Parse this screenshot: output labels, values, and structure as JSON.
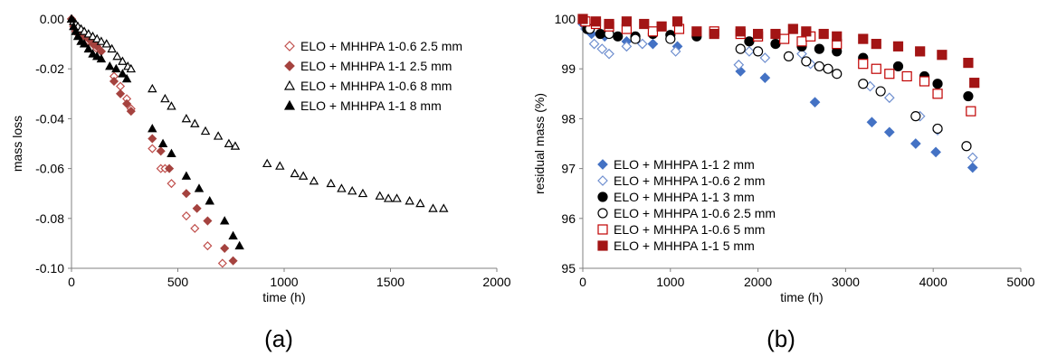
{
  "chart_data": [
    {
      "type": "scatter",
      "panel_label": "(a)",
      "xlabel": "time (h)",
      "ylabel": "mass loss",
      "xlim": [
        0,
        2000
      ],
      "ylim": [
        -0.1,
        0.0
      ],
      "xticks": [
        "0",
        "500",
        "1000",
        "1500",
        "2000"
      ],
      "yticks": [
        "0.00",
        "-0.02",
        "-0.04",
        "-0.06",
        "-0.08",
        "-0.10"
      ],
      "xtick_values": [
        0,
        500,
        1000,
        1500,
        2000
      ],
      "ytick_values": [
        0,
        -0.02,
        -0.04,
        -0.06,
        -0.08,
        -0.1
      ],
      "legend_position": "top-right",
      "series": [
        {
          "name": "ELO + MHHPA 1-0.6 2.5 mm",
          "marker": "diamond-open",
          "color": "#c0504d",
          "x": [
            0,
            10,
            20,
            30,
            45,
            60,
            80,
            100,
            120,
            140,
            200,
            230,
            260,
            280,
            380,
            420,
            440,
            470,
            540,
            580,
            640,
            710
          ],
          "y": [
            0.0,
            -0.003,
            -0.005,
            -0.006,
            -0.007,
            -0.008,
            -0.009,
            -0.01,
            -0.012,
            -0.013,
            -0.023,
            -0.027,
            -0.032,
            -0.036,
            -0.052,
            -0.06,
            -0.06,
            -0.066,
            -0.079,
            -0.084,
            -0.091,
            -0.098
          ]
        },
        {
          "name": "ELO + MHHPA 1-1 2.5 mm",
          "marker": "diamond-filled",
          "color": "#a5433f",
          "x": [
            0,
            10,
            20,
            30,
            45,
            60,
            80,
            100,
            120,
            140,
            200,
            230,
            260,
            280,
            380,
            420,
            460,
            540,
            590,
            640,
            720,
            760
          ],
          "y": [
            0.0,
            -0.002,
            -0.004,
            -0.005,
            -0.006,
            -0.007,
            -0.008,
            -0.01,
            -0.011,
            -0.013,
            -0.025,
            -0.03,
            -0.034,
            -0.037,
            -0.048,
            -0.053,
            -0.06,
            -0.07,
            -0.076,
            -0.081,
            -0.092,
            -0.097
          ]
        },
        {
          "name": "ELO + MHHPA 1-0.6 8 mm",
          "marker": "triangle-open",
          "color": "#000000",
          "x": [
            0,
            10,
            20,
            30,
            45,
            60,
            80,
            100,
            120,
            140,
            165,
            190,
            215,
            240,
            265,
            280,
            380,
            440,
            470,
            540,
            580,
            630,
            690,
            740,
            770,
            920,
            980,
            1050,
            1090,
            1140,
            1220,
            1270,
            1320,
            1370,
            1450,
            1490,
            1530,
            1590,
            1640,
            1700,
            1750
          ],
          "y": [
            0.0,
            -0.001,
            -0.002,
            -0.003,
            -0.004,
            -0.005,
            -0.006,
            -0.007,
            -0.008,
            -0.009,
            -0.01,
            -0.012,
            -0.015,
            -0.017,
            -0.019,
            -0.02,
            -0.028,
            -0.032,
            -0.035,
            -0.04,
            -0.042,
            -0.045,
            -0.047,
            -0.05,
            -0.051,
            -0.058,
            -0.059,
            -0.062,
            -0.063,
            -0.065,
            -0.066,
            -0.068,
            -0.069,
            -0.07,
            -0.071,
            -0.072,
            -0.072,
            -0.073,
            -0.074,
            -0.076,
            -0.076
          ]
        },
        {
          "name": "ELO + MHHPA 1-1 8 mm",
          "marker": "triangle-filled",
          "color": "#000000",
          "x": [
            0,
            10,
            20,
            30,
            45,
            60,
            80,
            100,
            120,
            140,
            180,
            210,
            240,
            260,
            380,
            430,
            470,
            540,
            600,
            650,
            720,
            760,
            790
          ],
          "y": [
            0.0,
            -0.003,
            -0.005,
            -0.007,
            -0.009,
            -0.01,
            -0.012,
            -0.014,
            -0.015,
            -0.016,
            -0.019,
            -0.02,
            -0.022,
            -0.024,
            -0.044,
            -0.05,
            -0.054,
            -0.063,
            -0.068,
            -0.073,
            -0.081,
            -0.087,
            -0.091
          ]
        }
      ]
    },
    {
      "type": "scatter",
      "panel_label": "(b)",
      "xlabel": "time (h)",
      "ylabel": "residual mass (%)",
      "xlim": [
        0,
        5000
      ],
      "ylim": [
        95,
        100
      ],
      "xticks": [
        "0",
        "1000",
        "2000",
        "3000",
        "4000",
        "5000"
      ],
      "yticks": [
        "100",
        "99",
        "98",
        "97",
        "96",
        "95"
      ],
      "xtick_values": [
        0,
        1000,
        2000,
        3000,
        4000,
        5000
      ],
      "ytick_values": [
        100,
        99,
        98,
        97,
        96,
        95
      ],
      "legend_position": "bottom-left",
      "series": [
        {
          "name": "ELO + MHHPA 1-1 2 mm",
          "marker": "diamond-filled",
          "color": "#4472c4",
          "x": [
            0,
            100,
            250,
            500,
            800,
            1080,
            1800,
            2080,
            2650,
            3300,
            3500,
            3800,
            4030,
            4450
          ],
          "y": [
            99.9,
            99.7,
            99.65,
            99.55,
            99.5,
            99.45,
            98.95,
            98.82,
            98.33,
            97.93,
            97.73,
            97.5,
            97.33,
            97.02
          ]
        },
        {
          "name": "ELO + MHHPA 1-0.6 2 mm",
          "marker": "diamond-open",
          "color": "#6f8fcf",
          "x": [
            30,
            130,
            220,
            300,
            500,
            680,
            1060,
            1780,
            1900,
            2080,
            2500,
            2600,
            3280,
            3500,
            3850,
            4050,
            4450
          ],
          "y": [
            99.8,
            99.5,
            99.4,
            99.3,
            99.45,
            99.5,
            99.35,
            99.08,
            99.35,
            99.22,
            99.3,
            99.1,
            98.65,
            98.42,
            98.05,
            97.77,
            97.22
          ]
        },
        {
          "name": "ELO + MHHPA 1-1 3 mm",
          "marker": "circle-filled",
          "color": "#000000",
          "x": [
            50,
            200,
            400,
            600,
            800,
            1000,
            1300,
            1900,
            2200,
            2500,
            2700,
            2900,
            3200,
            3600,
            3900,
            4050,
            4400
          ],
          "y": [
            99.8,
            99.7,
            99.65,
            99.65,
            99.7,
            99.68,
            99.65,
            99.55,
            99.5,
            99.45,
            99.4,
            99.35,
            99.22,
            99.05,
            98.85,
            98.7,
            98.45
          ]
        },
        {
          "name": "ELO + MHHPA 1-0.6 2.5 mm",
          "marker": "circle-open",
          "color": "#000000",
          "x": [
            80,
            300,
            600,
            1000,
            1800,
            2000,
            2350,
            2550,
            2700,
            2800,
            2900,
            3200,
            3400,
            3800,
            4050,
            4380
          ],
          "y": [
            99.8,
            99.7,
            99.6,
            99.6,
            99.4,
            99.35,
            99.25,
            99.15,
            99.05,
            99.0,
            98.9,
            98.7,
            98.55,
            98.05,
            97.8,
            97.45
          ]
        },
        {
          "name": "ELO + MHHPA 1-0.6 5 mm",
          "marker": "square-open",
          "color": "#c00000",
          "x": [
            30,
            150,
            300,
            500,
            800,
            1100,
            1500,
            1800,
            2000,
            2300,
            2500,
            2600,
            2900,
            3200,
            3350,
            3500,
            3700,
            3900,
            4050,
            4430
          ],
          "y": [
            99.95,
            99.9,
            99.85,
            99.8,
            99.75,
            99.8,
            99.75,
            99.7,
            99.65,
            99.6,
            99.55,
            99.65,
            99.5,
            99.1,
            99.0,
            98.9,
            98.85,
            98.75,
            98.5,
            98.15
          ]
        },
        {
          "name": "ELO + MHHPA 1-1 5 mm",
          "marker": "square-filled",
          "color": "#a31515",
          "x": [
            0,
            150,
            300,
            500,
            700,
            900,
            1080,
            1300,
            1500,
            1800,
            2000,
            2200,
            2400,
            2550,
            2750,
            2900,
            3200,
            3350,
            3600,
            3850,
            4100,
            4400,
            4470
          ],
          "y": [
            100.0,
            99.95,
            99.9,
            99.95,
            99.9,
            99.85,
            99.95,
            99.75,
            99.7,
            99.75,
            99.7,
            99.7,
            99.8,
            99.75,
            99.7,
            99.65,
            99.6,
            99.5,
            99.45,
            99.35,
            99.28,
            99.12,
            98.72
          ]
        }
      ]
    }
  ]
}
